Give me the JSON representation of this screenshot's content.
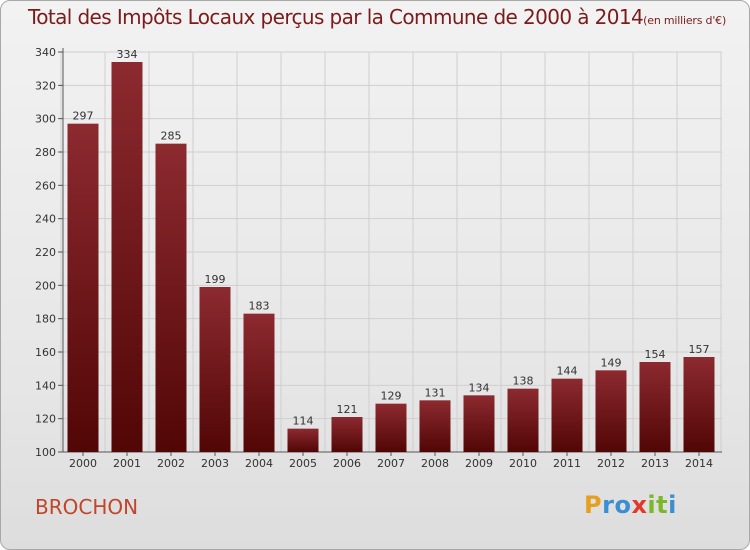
{
  "title": "Total des Impôts Locaux perçus par la Commune de 2000 à 2014",
  "unit": "(en milliers d'€)",
  "commune": "BROCHON",
  "logo": {
    "letters": [
      "P",
      "r",
      "o",
      "x",
      "i",
      "t",
      "i"
    ],
    "colors": [
      "#e6a020",
      "#3a8fd0",
      "#3a8fd0",
      "#e23a2a",
      "#7ab82a",
      "#7ab82a",
      "#3a8fd0"
    ]
  },
  "colors": {
    "bar_top": "#8c2a30",
    "bar_bottom": "#520606",
    "title": "#7a1c1c",
    "commune": "#c0462a",
    "grid": "#cfcfcf"
  },
  "chart_data": {
    "type": "bar",
    "title": "Total des Impôts Locaux perçus par la Commune de 2000 à 2014",
    "subtitle": "(en milliers d'€)",
    "xlabel": "",
    "ylabel": "",
    "categories": [
      "2000",
      "2001",
      "2002",
      "2003",
      "2004",
      "2005",
      "2006",
      "2007",
      "2008",
      "2009",
      "2010",
      "2011",
      "2012",
      "2013",
      "2014"
    ],
    "values": [
      297,
      334,
      285,
      199,
      183,
      114,
      121,
      129,
      131,
      134,
      138,
      144,
      149,
      154,
      157
    ],
    "ylim": [
      100,
      340
    ],
    "yticks": [
      100,
      120,
      140,
      160,
      180,
      200,
      220,
      240,
      260,
      280,
      300,
      320,
      340
    ],
    "grid": true,
    "legend": "none"
  }
}
